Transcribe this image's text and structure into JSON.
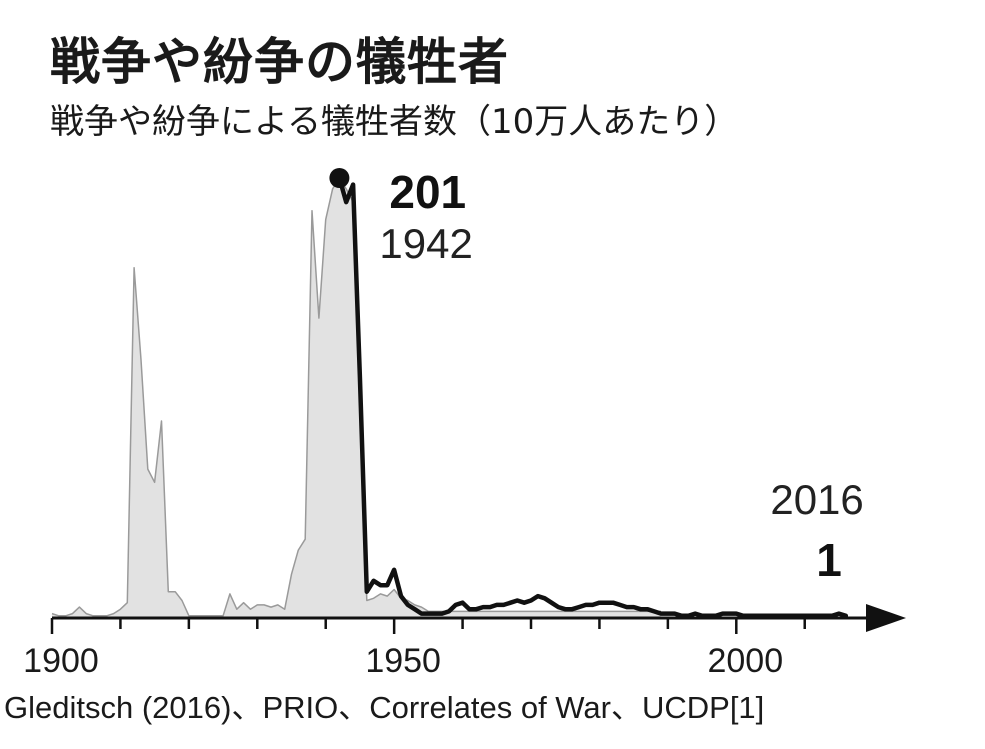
{
  "title": "戦争や紛争の犠牲者",
  "subtitle": "戦争や紛争による犠牲者数（10万人あたり）",
  "source": "Gleditsch (2016)、PRIO、Correlates of War、UCDP[1]",
  "colors": {
    "area_fill": "#e2e2e2",
    "area_stroke": "#9a9a9a",
    "line": "#111111",
    "axis": "#111111"
  },
  "chart_data": {
    "type": "area",
    "title": "戦争や紛争の犠牲者",
    "subtitle": "戦争や紛争による犠牲者数（10万人あたり）",
    "xlabel": "",
    "ylabel": "",
    "xlim": [
      1900,
      2021
    ],
    "ylim": [
      0,
      201
    ],
    "grid": false,
    "x_ticks": [
      1900,
      1950,
      2000
    ],
    "annotations": [
      {
        "year": 1942,
        "value": 201,
        "value_label": "201",
        "year_label": "1942"
      },
      {
        "year": 2016,
        "value": 1,
        "value_label": "1",
        "year_label": "2016"
      }
    ],
    "series": [
      {
        "name": "",
        "style": "gray-area",
        "x": [
          1900,
          1901,
          1902,
          1903,
          1904,
          1905,
          1906,
          1907,
          1908,
          1909,
          1910,
          1911,
          1912,
          1913,
          1914,
          1915,
          1916,
          1917,
          1918,
          1919,
          1920,
          1921,
          1922,
          1923,
          1924,
          1925,
          1926,
          1927,
          1928,
          1929,
          1930,
          1931,
          1932,
          1933,
          1934,
          1935,
          1936,
          1937,
          1938,
          1939,
          1940,
          1941,
          1942,
          1943,
          1944,
          1945,
          1946,
          1947,
          1948,
          1949,
          1950,
          1951,
          1952,
          1953,
          1954,
          1955,
          1956,
          1957,
          1958,
          1959,
          1960,
          1961,
          1962,
          1963,
          1964,
          1965,
          1966,
          1967,
          1968,
          1969,
          1970,
          1971,
          1972,
          1973,
          1974,
          1975,
          1976,
          1977,
          1978,
          1979,
          1980,
          1981,
          1982,
          1983,
          1984,
          1985,
          1986,
          1987,
          1988,
          1989
        ],
        "y": [
          2,
          1,
          1,
          2,
          5,
          2,
          1,
          1,
          1,
          2,
          4,
          7,
          160,
          118,
          68,
          62,
          90,
          12,
          12,
          8,
          1,
          1,
          1,
          1,
          1,
          1,
          11,
          4,
          7,
          4,
          6,
          6,
          5,
          6,
          4,
          20,
          31,
          36,
          186,
          137,
          182,
          196,
          201,
          196,
          190,
          115,
          8,
          9,
          11,
          10,
          13,
          9,
          8,
          6,
          5,
          3,
          3,
          3,
          3,
          3,
          3,
          3,
          3,
          3,
          3,
          3,
          3,
          3,
          3,
          3,
          3,
          3,
          3,
          3,
          3,
          3,
          3,
          3,
          3,
          3,
          3,
          3,
          3,
          3,
          3,
          3,
          3,
          3,
          3,
          3
        ]
      },
      {
        "name": "",
        "style": "black-line",
        "x": [
          1942,
          1943,
          1944,
          1945,
          1946,
          1947,
          1948,
          1949,
          1950,
          1951,
          1952,
          1953,
          1954,
          1955,
          1956,
          1957,
          1958,
          1959,
          1960,
          1961,
          1962,
          1963,
          1964,
          1965,
          1966,
          1967,
          1968,
          1969,
          1970,
          1971,
          1972,
          1973,
          1974,
          1975,
          1976,
          1977,
          1978,
          1979,
          1980,
          1981,
          1982,
          1983,
          1984,
          1985,
          1986,
          1987,
          1988,
          1989,
          1990,
          1991,
          1992,
          1993,
          1994,
          1995,
          1996,
          1997,
          1998,
          1999,
          2000,
          2001,
          2002,
          2003,
          2004,
          2005,
          2006,
          2007,
          2008,
          2009,
          2010,
          2011,
          2012,
          2013,
          2014,
          2015,
          2016
        ],
        "y": [
          201,
          190,
          198,
          110,
          12,
          17,
          15,
          15,
          22,
          10,
          6,
          4,
          2,
          2,
          2,
          2,
          3,
          6,
          7,
          4,
          4,
          5,
          5,
          6,
          6,
          7,
          8,
          7,
          8,
          10,
          9,
          7,
          5,
          4,
          4,
          5,
          6,
          6,
          7,
          7,
          7,
          6,
          5,
          5,
          4,
          4,
          3,
          2,
          2,
          2,
          1,
          1,
          2,
          1,
          1,
          1,
          2,
          2,
          2,
          1,
          1,
          1,
          1,
          1,
          1,
          1,
          1,
          1,
          1,
          1,
          1,
          1,
          1,
          2,
          1
        ]
      }
    ]
  }
}
